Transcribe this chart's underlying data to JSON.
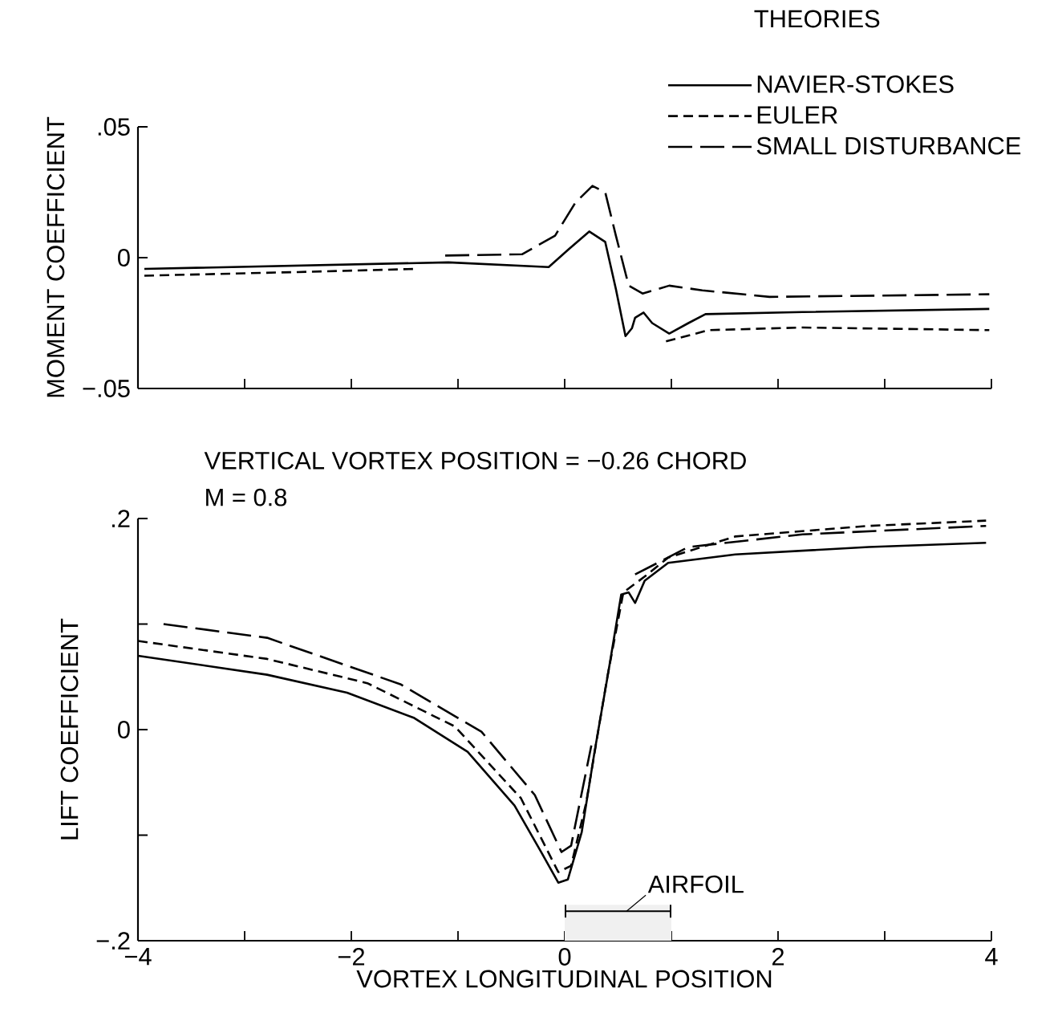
{
  "chart_data": [
    {
      "type": "line",
      "ylabel": "MOMENT COEFFICIENT",
      "legend_title": "THEORIES",
      "legend": "top right",
      "tick_labels": "y",
      "xlim": [
        -4,
        4
      ],
      "ylim": [
        -0.05,
        0.05
      ],
      "xticks": [
        {
          "value": -4,
          "label": null
        },
        {
          "value": -3,
          "label": null
        },
        {
          "value": -2,
          "label": null
        },
        {
          "value": -1,
          "label": null
        },
        {
          "value": 0,
          "label": null
        },
        {
          "value": 1,
          "label": null
        },
        {
          "value": 2,
          "label": null
        },
        {
          "value": 3,
          "label": null
        },
        {
          "value": 4,
          "label": null
        }
      ],
      "yticks": [
        {
          "value": -0.05,
          "label": "−.05"
        },
        0,
        {
          "value": 0.05,
          "label": ".05"
        }
      ],
      "series": [
        {
          "name": "NAVIER-STOKES",
          "color": "#000000",
          "line_style": "solid",
          "x": [
            -3.94,
            -1.09,
            -0.15,
            0.04,
            0.23,
            0.38,
            0.48,
            0.57,
            0.63,
            0.66,
            0.74,
            0.82,
            0.98,
            1.16,
            1.32,
            2.23,
            3.98
          ],
          "values": [
            -0.0043,
            -0.0018,
            -0.0036,
            0.0033,
            0.01,
            0.006,
            -0.012,
            -0.03,
            -0.027,
            -0.023,
            -0.021,
            -0.025,
            -0.029,
            -0.025,
            -0.0216,
            -0.0208,
            -0.0196
          ]
        },
        {
          "name": "EULER",
          "color": "#000000",
          "line_style": "dashed",
          "x": [
            -3.94,
            -2.5,
            -1.4,
            0,
            0.95,
            1.35,
            2.23,
            3.98
          ],
          "values": [
            -0.0069,
            -0.0055,
            -0.0043,
            null,
            -0.032,
            -0.0277,
            -0.0267,
            -0.0277
          ]
        },
        {
          "name": "SMALL DISTURBANCE",
          "color": "#000000",
          "line_style": "long dashed",
          "x": [
            -1.12,
            -0.4,
            -0.09,
            0.1,
            0.26,
            0.38,
            0.48,
            0.6,
            0.73,
            0.98,
            1.29,
            1.92,
            3.98
          ],
          "values": [
            0.0008,
            0.0013,
            0.0084,
            0.021,
            0.0274,
            0.025,
            0.0084,
            -0.0107,
            -0.0137,
            -0.0107,
            -0.0125,
            -0.015,
            -0.014
          ]
        }
      ]
    },
    {
      "type": "line",
      "title": "VERTICAL VORTEX POSITION = −0.26 CHORD",
      "subtitle": "M = 0.8",
      "xlabel": "VORTEX LONGITUDINAL POSITION",
      "ylabel": "LIFT COEFFICIENT",
      "xlim": [
        -4,
        4
      ],
      "ylim": [
        -0.2,
        0.2
      ],
      "xticks": [
        {
          "value": -4,
          "label": "−4"
        },
        {
          "value": -3,
          "label": null
        },
        {
          "value": -2,
          "label": "−2"
        },
        {
          "value": -1,
          "label": null
        },
        0,
        {
          "value": 1,
          "label": null
        },
        2,
        {
          "value": 3,
          "label": null
        },
        4
      ],
      "yticks": [
        {
          "value": -0.2,
          "label": "−.2"
        },
        {
          "value": -0.1,
          "label": null
        },
        0,
        {
          "value": 0.1,
          "label": null
        },
        {
          "value": 0.2,
          "label": ".2"
        }
      ],
      "bands": [
        {
          "axis": "x",
          "from": 0,
          "to": 1,
          "label": "AIRFOIL"
        }
      ],
      "series": [
        {
          "color": "#000000",
          "line_style": "solid",
          "x": [
            -4,
            -2.79,
            -2.04,
            -1.41,
            -0.91,
            -0.47,
            -0.22,
            -0.06,
            0.03,
            0.16,
            0.28,
            0.41,
            0.53,
            0.6,
            0.66,
            0.75,
            0.97,
            1.6,
            2.85,
            3.95
          ],
          "values": [
            0.07,
            0.052,
            0.035,
            0.011,
            -0.021,
            -0.072,
            -0.116,
            -0.145,
            -0.142,
            -0.097,
            -0.021,
            0.055,
            0.128,
            0.13,
            0.12,
            0.141,
            0.158,
            0.166,
            0.173,
            0.177
          ]
        },
        {
          "color": "#000000",
          "line_style": "dashed",
          "x": [
            -4,
            -2.79,
            -1.85,
            -1.03,
            -0.41,
            -0.06,
            0.06,
            0.2,
            0.4,
            0.55,
            0.75,
            0.97,
            1.6,
            2.85,
            3.95
          ],
          "values": [
            0.084,
            0.067,
            0.044,
            0.003,
            -0.065,
            -0.135,
            -0.129,
            -0.07,
            0.05,
            0.13,
            0.145,
            0.163,
            0.183,
            0.193,
            0.198
          ]
        },
        {
          "color": "#000000",
          "line_style": "long dashed",
          "x": [
            -3.76,
            -2.79,
            -1.54,
            -0.78,
            -0.28,
            -0.03,
            0.06,
            0.25,
            0.5,
            0.66,
            1.16,
            2.23,
            3.95
          ],
          "values": [
            0.1,
            0.087,
            0.043,
            -0.002,
            -0.062,
            -0.116,
            -0.11,
            -0.015,
            null,
            0.147,
            0.173,
            0.185,
            0.193
          ]
        }
      ]
    }
  ]
}
